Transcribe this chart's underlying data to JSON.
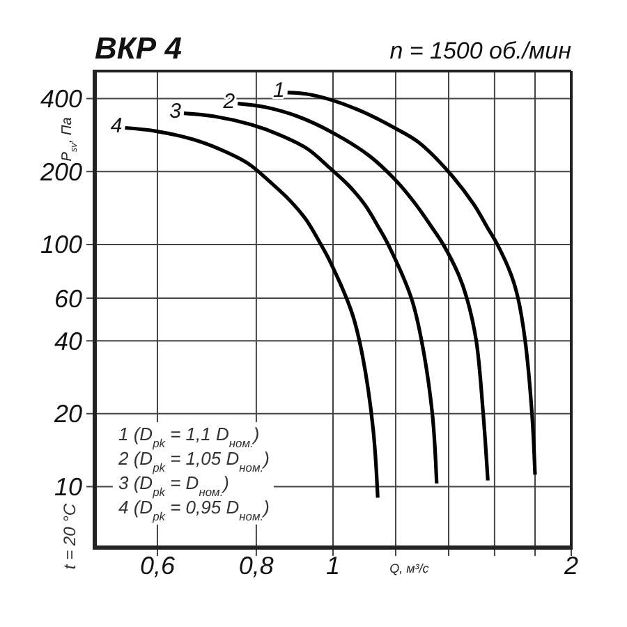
{
  "chart_data": {
    "type": "line",
    "title": "ВКР 4",
    "subtitle": "n = 1500 об./мин",
    "xlabel": "Q, м³/с",
    "ylabel": "P$_{sv}$, Па",
    "log": "xy",
    "xlim": [
      0.5,
      2
    ],
    "ylim": [
      5.6,
      520
    ],
    "xticks": [
      {
        "value": 0.6,
        "label": "0,6"
      },
      {
        "value": 0.8,
        "label": "0,8"
      },
      1,
      {
        "value": 1.2,
        "label": null
      },
      {
        "value": 1.4,
        "label": null
      },
      {
        "value": 1.6,
        "label": null
      },
      {
        "value": 1.8,
        "label": null
      },
      2
    ],
    "yticks": [
      10,
      20,
      40,
      60,
      100,
      200,
      400
    ],
    "grid": true,
    "series": [
      {
        "name": "1",
        "color": "#000000",
        "x": [
          0.876,
          0.927,
          0.998,
          1.09,
          1.198,
          1.281,
          1.393,
          1.507,
          1.568,
          1.613,
          1.679,
          1.713,
          1.749,
          1.784,
          1.8
        ],
        "values": [
          424,
          418,
          394,
          353,
          302,
          265,
          203,
          146,
          117,
          100,
          75,
          60,
          40,
          20,
          11.2
        ]
      },
      {
        "name": "2",
        "color": "#000000",
        "x": [
          0.758,
          0.821,
          0.902,
          1.0,
          1.112,
          1.204,
          1.273,
          1.335,
          1.378,
          1.441,
          1.476,
          1.517,
          1.548,
          1.569
        ],
        "values": [
          382,
          369,
          338,
          289,
          232,
          182,
          146,
          117,
          100,
          75,
          60,
          40,
          20,
          10.6
        ]
      },
      {
        "name": "3",
        "color": "#000000",
        "x": [
          0.648,
          0.708,
          0.789,
          0.855,
          0.927,
          0.989,
          1.047,
          1.097,
          1.143,
          1.174,
          1.256,
          1.294,
          1.335,
          1.352
        ],
        "values": [
          348,
          338,
          312,
          284,
          249,
          208,
          175,
          146,
          117,
          100,
          60,
          40,
          20,
          10.3
        ]
      },
      {
        "name": "4",
        "color": "#000000",
        "x": [
          0.546,
          0.596,
          0.664,
          0.72,
          0.781,
          0.833,
          0.882,
          0.924,
          0.962,
          0.988,
          1.057,
          1.089,
          1.124,
          1.139
        ],
        "values": [
          303,
          294,
          272,
          247,
          216,
          181,
          152,
          127,
          102,
          87,
          52,
          35,
          17.2,
          9
        ]
      }
    ],
    "annotations": [
      "1 (D$_{pk}$ = 1,1 D$_{ном.}$)",
      "2 (D$_{pk}$ = 1,05 D$_{ном.}$)",
      "3 (D$_{pk}$ = D$_{ном.}$)",
      "4 (D$_{pk}$ = 0,95 D$_{ном.}$)",
      "t = 20 °C"
    ]
  }
}
